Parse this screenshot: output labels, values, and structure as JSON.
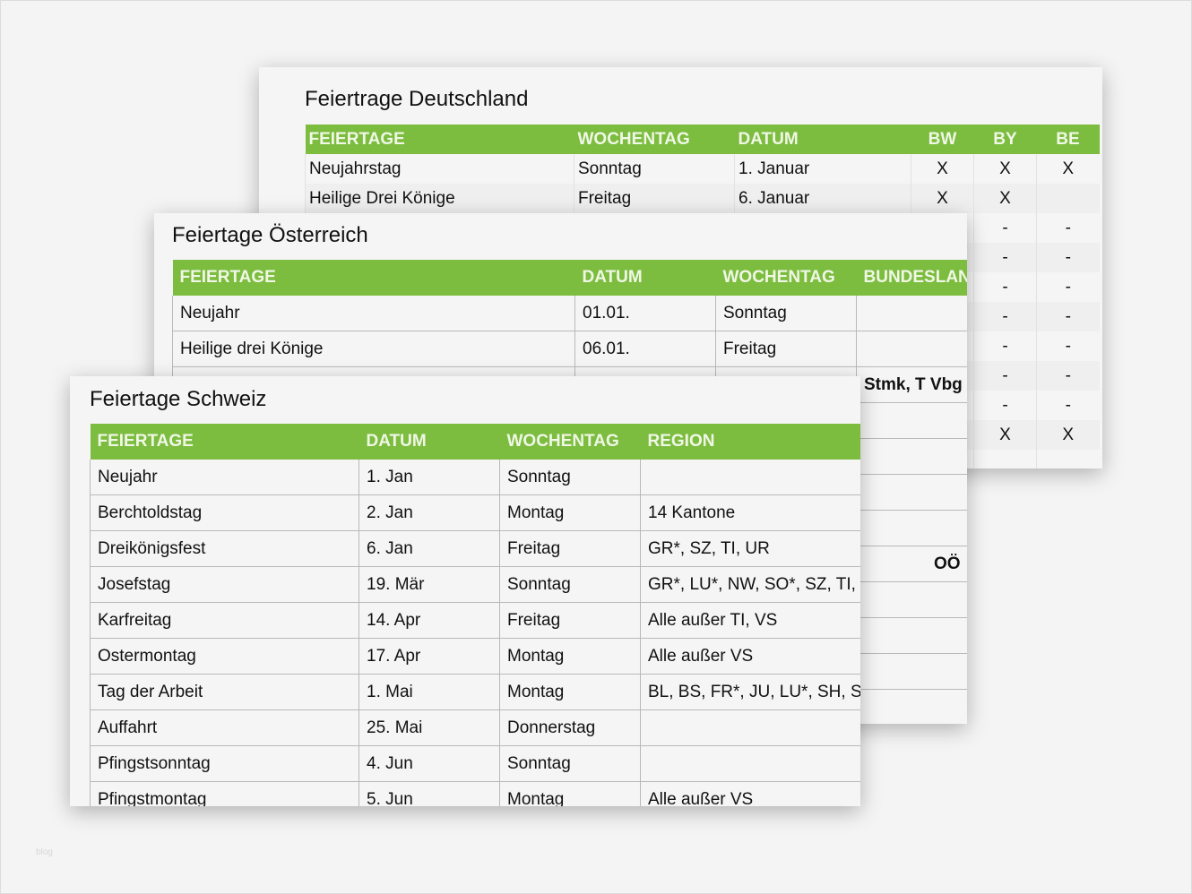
{
  "accent_color": "#7cbd3f",
  "germany": {
    "title": "Feiertrage Deutschland",
    "columns": [
      "FEIERTAGE",
      "WOCHENTAG",
      "DATUM",
      "BW",
      "BY",
      "BE"
    ],
    "rows": [
      [
        "Neujahrstag",
        "Sonntag",
        "1. Januar",
        "X",
        "X",
        "X"
      ],
      [
        "Heilige Drei Könige",
        "Freitag",
        "6. Januar",
        "X",
        "X",
        ""
      ],
      [
        "",
        "",
        "",
        "",
        "-",
        "-"
      ],
      [
        "",
        "",
        "",
        "",
        "-",
        "-"
      ],
      [
        "",
        "",
        "",
        "",
        "-",
        "-"
      ],
      [
        "",
        "",
        "",
        "",
        "-",
        "-"
      ],
      [
        "",
        "",
        "",
        "",
        "-",
        "-"
      ],
      [
        "",
        "",
        "",
        "",
        "-",
        "-"
      ],
      [
        "",
        "",
        "",
        "",
        "-",
        "-"
      ],
      [
        "",
        "",
        "",
        "",
        "X",
        "X"
      ],
      [
        "",
        "",
        "",
        "",
        "",
        ""
      ]
    ]
  },
  "austria": {
    "title": "Feiertage Österreich",
    "columns": [
      "FEIERTAGE",
      "DATUM",
      "WOCHENTAG",
      "BUNDESLAND"
    ],
    "rows": [
      [
        "Neujahr",
        "01.01.",
        "Sonntag",
        ""
      ],
      [
        "Heilige drei Könige",
        "06.01.",
        "Freitag",
        ""
      ],
      [
        "",
        "",
        "",
        "Stmk, T Vbg"
      ],
      [
        "",
        "",
        "",
        ""
      ],
      [
        "",
        "",
        "",
        ""
      ],
      [
        "",
        "",
        "",
        ""
      ],
      [
        "",
        "",
        "",
        ""
      ],
      [
        "",
        "",
        "",
        "OÖ"
      ],
      [
        "",
        "",
        "",
        ""
      ],
      [
        "",
        "",
        "",
        ""
      ],
      [
        "",
        "",
        "",
        ""
      ],
      [
        "",
        "",
        "",
        ""
      ]
    ]
  },
  "switzerland": {
    "title": "Feiertage Schweiz",
    "columns": [
      "FEIERTAGE",
      "DATUM",
      "WOCHENTAG",
      "REGION"
    ],
    "rows": [
      [
        "Neujahr",
        "1. Jan",
        "Sonntag",
        ""
      ],
      [
        "Berchtoldstag",
        "2. Jan",
        "Montag",
        "14 Kantone"
      ],
      [
        "Dreikönigsfest",
        "6. Jan",
        "Freitag",
        "GR*, SZ, TI, UR"
      ],
      [
        "Josefstag",
        "19. Mär",
        "Sonntag",
        "GR*, LU*, NW, SO*, SZ, TI, UR, VS"
      ],
      [
        "Karfreitag",
        "14. Apr",
        "Freitag",
        "Alle außer TI, VS"
      ],
      [
        "Ostermontag",
        "17. Apr",
        "Montag",
        "Alle außer VS"
      ],
      [
        "Tag der Arbeit",
        "1. Mai",
        "Montag",
        "BL, BS, FR*, JU, LU*, SH, SO, TG, TI, ZH"
      ],
      [
        "Auffahrt",
        "25. Mai",
        "Donnerstag",
        ""
      ],
      [
        "Pfingstsonntag",
        "4. Jun",
        "Sonntag",
        ""
      ],
      [
        "Pfingstmontag",
        "5. Jun",
        "Montag",
        "Alle außer VS"
      ]
    ]
  },
  "watermark": "blog"
}
